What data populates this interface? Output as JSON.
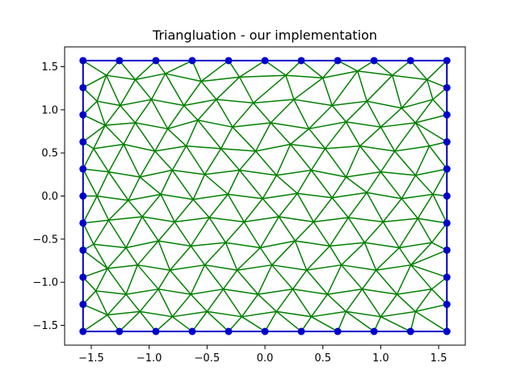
{
  "chart_data": {
    "type": "scatter",
    "title": "Triangluation - our implementation",
    "xlabel": "",
    "ylabel": "",
    "xlim": [
      -1.73,
      1.73
    ],
    "ylim": [
      -1.73,
      1.73
    ],
    "xticks": [
      -1.5,
      -1.0,
      -0.5,
      0.0,
      0.5,
      1.0,
      1.5
    ],
    "xtick_labels": [
      "−1.5",
      "−1.0",
      "−0.5",
      "0.0",
      "0.5",
      "1.0",
      "1.5"
    ],
    "yticks": [
      -1.5,
      -1.0,
      -0.5,
      0.0,
      0.5,
      1.0,
      1.5
    ],
    "ytick_labels": [
      "−1.5",
      "−1.0",
      "−0.5",
      "0.0",
      "0.5",
      "1.0",
      "1.5"
    ],
    "grid": false,
    "colors": {
      "boundary": "#0000cc",
      "mesh": "#008000"
    },
    "boundary_x": [
      -1.571,
      -1.257,
      -0.942,
      -0.628,
      -0.314,
      0.0,
      0.314,
      0.628,
      0.942,
      1.257,
      1.571
    ],
    "boundary_y": [
      -1.571,
      -1.257,
      -0.942,
      -0.628,
      -0.314,
      0.0,
      0.314,
      0.628,
      0.942,
      1.257,
      1.571
    ],
    "interior_points": [
      [
        -1.37,
        1.4
      ],
      [
        -1.12,
        1.35
      ],
      [
        -0.86,
        1.42
      ],
      [
        -0.55,
        1.33
      ],
      [
        -0.22,
        1.38
      ],
      [
        0.18,
        1.4
      ],
      [
        0.5,
        1.37
      ],
      [
        0.8,
        1.45
      ],
      [
        1.1,
        1.4
      ],
      [
        1.4,
        1.35
      ],
      [
        -1.45,
        1.1
      ],
      [
        -1.25,
        1.05
      ],
      [
        -0.98,
        1.12
      ],
      [
        -0.7,
        1.05
      ],
      [
        -0.42,
        1.12
      ],
      [
        -0.1,
        1.08
      ],
      [
        0.25,
        1.12
      ],
      [
        0.58,
        1.05
      ],
      [
        0.88,
        1.1
      ],
      [
        1.18,
        1.02
      ],
      [
        1.45,
        1.12
      ],
      [
        -1.38,
        0.82
      ],
      [
        -1.12,
        0.85
      ],
      [
        -0.84,
        0.78
      ],
      [
        -0.58,
        0.88
      ],
      [
        -0.28,
        0.8
      ],
      [
        0.05,
        0.85
      ],
      [
        0.38,
        0.78
      ],
      [
        0.7,
        0.86
      ],
      [
        1.0,
        0.8
      ],
      [
        1.3,
        0.85
      ],
      [
        -1.48,
        0.55
      ],
      [
        -1.22,
        0.6
      ],
      [
        -0.95,
        0.52
      ],
      [
        -0.68,
        0.58
      ],
      [
        -0.38,
        0.55
      ],
      [
        -0.08,
        0.52
      ],
      [
        0.22,
        0.6
      ],
      [
        0.52,
        0.55
      ],
      [
        0.82,
        0.58
      ],
      [
        1.12,
        0.52
      ],
      [
        1.42,
        0.58
      ],
      [
        -1.35,
        0.28
      ],
      [
        -1.08,
        0.22
      ],
      [
        -0.8,
        0.3
      ],
      [
        -0.52,
        0.25
      ],
      [
        -0.22,
        0.3
      ],
      [
        0.1,
        0.24
      ],
      [
        0.4,
        0.3
      ],
      [
        0.7,
        0.22
      ],
      [
        1.0,
        0.28
      ],
      [
        1.3,
        0.24
      ],
      [
        -1.45,
        0.0
      ],
      [
        -1.18,
        -0.05
      ],
      [
        -0.9,
        0.02
      ],
      [
        -0.62,
        -0.04
      ],
      [
        -0.32,
        0.02
      ],
      [
        -0.02,
        -0.03
      ],
      [
        0.28,
        0.03
      ],
      [
        0.58,
        -0.02
      ],
      [
        0.88,
        0.04
      ],
      [
        1.18,
        -0.03
      ],
      [
        1.45,
        0.02
      ],
      [
        -1.35,
        -0.28
      ],
      [
        -1.06,
        -0.24
      ],
      [
        -0.78,
        -0.3
      ],
      [
        -0.48,
        -0.25
      ],
      [
        -0.18,
        -0.3
      ],
      [
        0.12,
        -0.24
      ],
      [
        0.42,
        -0.3
      ],
      [
        0.72,
        -0.25
      ],
      [
        1.02,
        -0.3
      ],
      [
        1.32,
        -0.26
      ],
      [
        -1.48,
        -0.56
      ],
      [
        -1.2,
        -0.6
      ],
      [
        -0.92,
        -0.52
      ],
      [
        -0.64,
        -0.58
      ],
      [
        -0.34,
        -0.54
      ],
      [
        -0.04,
        -0.6
      ],
      [
        0.26,
        -0.52
      ],
      [
        0.56,
        -0.58
      ],
      [
        0.86,
        -0.54
      ],
      [
        1.16,
        -0.6
      ],
      [
        1.44,
        -0.54
      ],
      [
        -1.36,
        -0.84
      ],
      [
        -1.1,
        -0.8
      ],
      [
        -0.82,
        -0.86
      ],
      [
        -0.52,
        -0.8
      ],
      [
        -0.24,
        -0.86
      ],
      [
        0.06,
        -0.8
      ],
      [
        0.36,
        -0.86
      ],
      [
        0.66,
        -0.8
      ],
      [
        0.96,
        -0.86
      ],
      [
        1.26,
        -0.8
      ],
      [
        -1.46,
        -1.1
      ],
      [
        -1.2,
        -1.14
      ],
      [
        -0.92,
        -1.08
      ],
      [
        -0.64,
        -1.14
      ],
      [
        -0.36,
        -1.08
      ],
      [
        -0.06,
        -1.14
      ],
      [
        0.24,
        -1.08
      ],
      [
        0.54,
        -1.14
      ],
      [
        0.84,
        -1.08
      ],
      [
        1.14,
        -1.14
      ],
      [
        1.44,
        -1.08
      ],
      [
        -1.36,
        -1.38
      ],
      [
        -1.08,
        -1.34
      ],
      [
        -0.8,
        -1.4
      ],
      [
        -0.5,
        -1.34
      ],
      [
        -0.2,
        -1.4
      ],
      [
        0.1,
        -1.34
      ],
      [
        0.4,
        -1.4
      ],
      [
        0.7,
        -1.34
      ],
      [
        1.0,
        -1.4
      ],
      [
        1.3,
        -1.34
      ]
    ]
  }
}
